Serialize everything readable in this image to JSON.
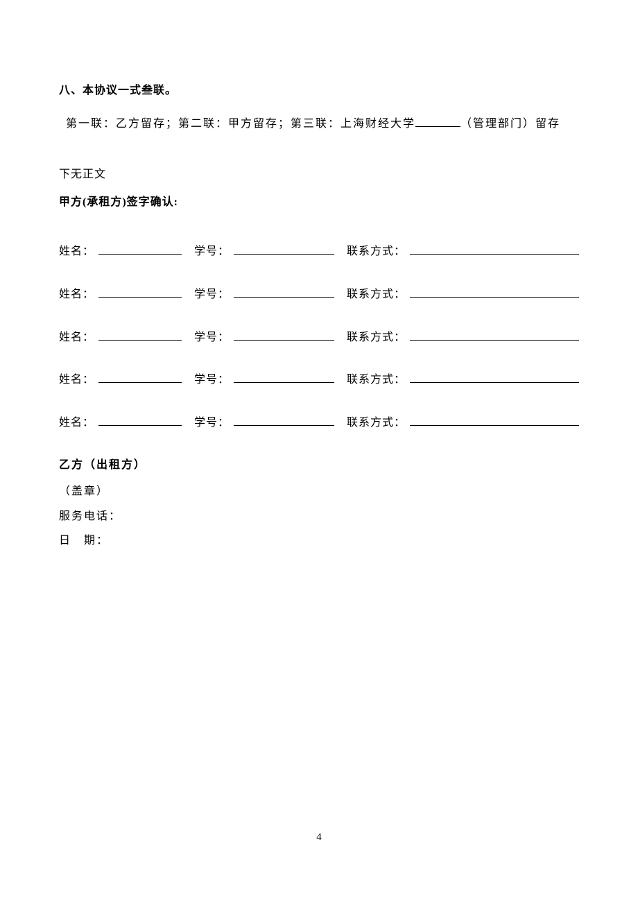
{
  "colors": {
    "background": "#ffffff",
    "text": "#000000"
  },
  "typography": {
    "font_family": "SimSun / 宋体",
    "base_size_pt": 12
  },
  "section": {
    "title": "八、本协议一式叁联。",
    "copies_prefix": "第一联：乙方留存；第二联：甲方留存；第三联：上海财经大学",
    "copies_suffix": "（管理部门）留存"
  },
  "no_content": "下无正文",
  "party_a": {
    "title": "甲方(承租方)签字确认:",
    "field_labels": {
      "name": "姓名：",
      "student_id": "学号：",
      "contact": "联系方式："
    },
    "row_count": 5
  },
  "party_b": {
    "title": "乙方（出租方）",
    "stamp": "（盖章）",
    "service_phone_label": "服务电话：",
    "date_label_a": "日",
    "date_label_b": "期："
  },
  "page_number": "4"
}
